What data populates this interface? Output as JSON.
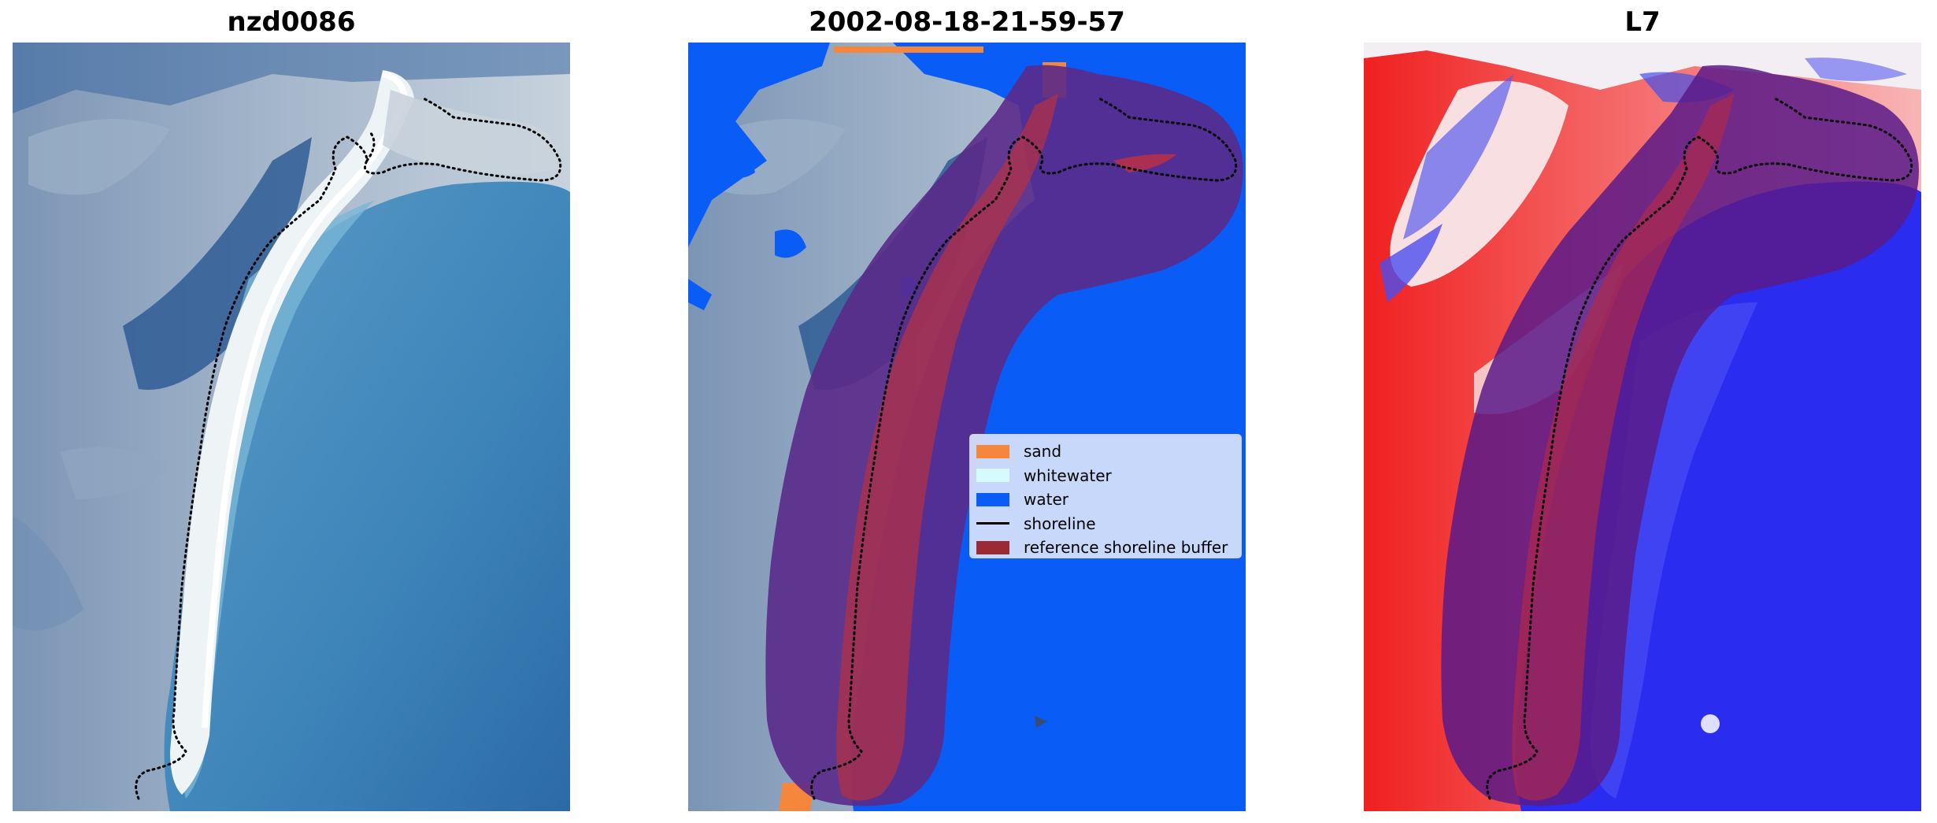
{
  "panels": [
    {
      "title": "nzd0086"
    },
    {
      "title": "2002-08-18-21-59-57"
    },
    {
      "title": "L7"
    }
  ],
  "legend": {
    "items": [
      {
        "label": "sand",
        "kind": "patch",
        "color": "#f5873c"
      },
      {
        "label": "whitewater",
        "kind": "patch",
        "color": "#d6fbff"
      },
      {
        "label": "water",
        "kind": "patch",
        "color": "#0a5cf6"
      },
      {
        "label": "shoreline",
        "kind": "line",
        "color": "#000000"
      },
      {
        "label": "reference shoreline buffer",
        "kind": "patch",
        "color": "#9a2a33"
      }
    ]
  }
}
